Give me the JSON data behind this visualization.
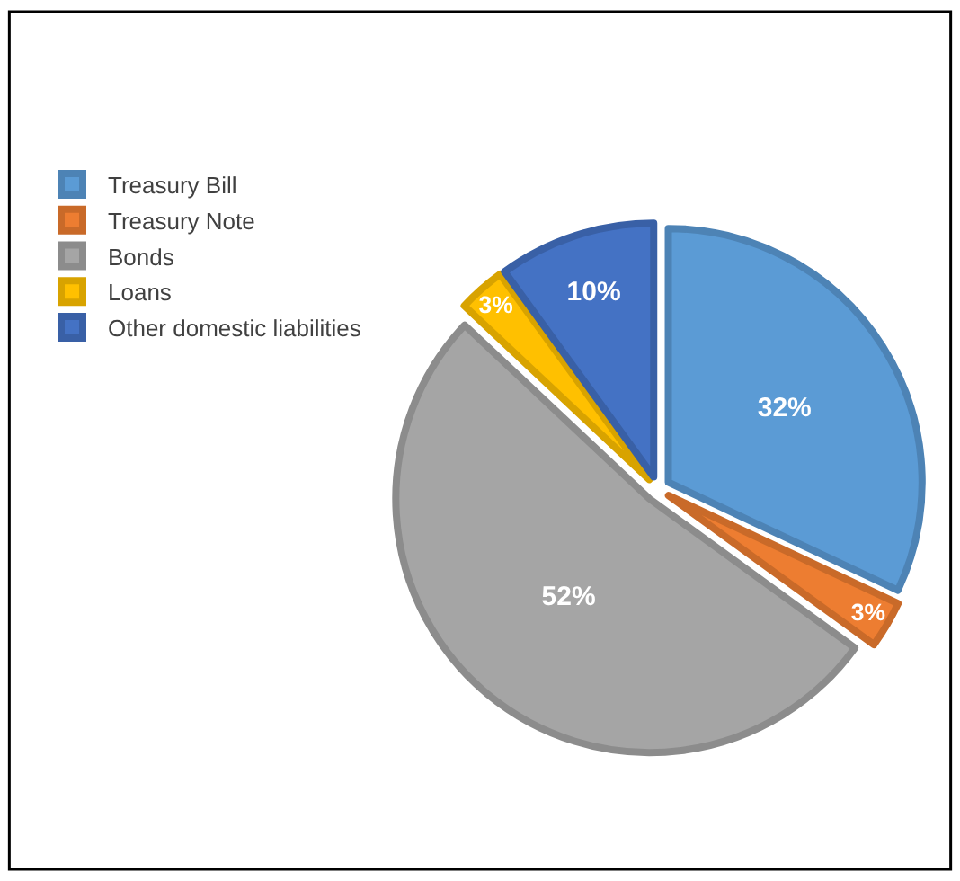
{
  "chart_data": {
    "type": "pie",
    "categories": [
      "Treasury Bill",
      "Treasury Note",
      "Bonds",
      "Loans",
      "Other domestic liabilities"
    ],
    "values": [
      32,
      3,
      52,
      3,
      10
    ],
    "colors": [
      "#5b9bd5",
      "#ed7d31",
      "#a5a5a5",
      "#ffc000",
      "#4472c4"
    ],
    "value_labels": [
      "32%",
      "3%",
      "52%",
      "3%",
      "10%"
    ],
    "legend": "left"
  }
}
